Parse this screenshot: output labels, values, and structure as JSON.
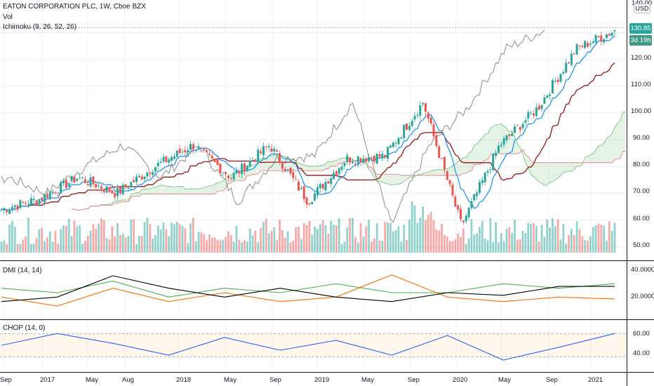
{
  "header": {
    "title": "EATON CORPORATION PLC, 1W, Cboe BZX",
    "volume_label": "Vol",
    "ichimoku_label": "Ichimoku (9, 26, 52, 26)"
  },
  "currency_badge": "USD",
  "price_tag": "130.85",
  "countdown_tag": "3d 19h",
  "price_axis": {
    "top_partial": "140.00",
    "labels": [
      "130.00",
      "120.00",
      "110.00",
      "100.00",
      "90.00",
      "80.00",
      "70.00",
      "60.00",
      "50.00"
    ]
  },
  "dmi_pane": {
    "label": "DMI (14, 14)",
    "axis_labels": [
      "40.0000",
      "20.0000"
    ]
  },
  "chop_pane": {
    "label": "CHOP (14, 0)",
    "axis_labels": [
      "60.00",
      "40.00"
    ]
  },
  "time_axis": [
    "Sep",
    "2017",
    "May",
    "Aug",
    "2018",
    "May",
    "Sep",
    "2019",
    "May",
    "Sep",
    "2020",
    "May",
    "Sep",
    "2021"
  ],
  "colors": {
    "up": "#26a69a",
    "down": "#ef5350",
    "conversion_line": "#2196f3",
    "base_line": "#991515",
    "lagging_span": "#808080",
    "dmi_plus": "#4caf50",
    "dmi_minus": "#ff6d00",
    "adx": "#000000",
    "chop": "#2962ff"
  },
  "chart_data": {
    "type": "candlestick",
    "symbol": "EATON CORPORATION PLC",
    "interval": "1W",
    "price_range": [
      45,
      140
    ],
    "last_price": 130.85,
    "price_key_points": [
      {
        "t": "2016-09",
        "close": 64
      },
      {
        "t": "2017-01",
        "close": 68
      },
      {
        "t": "2017-05",
        "close": 76
      },
      {
        "t": "2017-08",
        "close": 70
      },
      {
        "t": "2017-12",
        "close": 80
      },
      {
        "t": "2018-01",
        "close": 88
      },
      {
        "t": "2018-05",
        "close": 76
      },
      {
        "t": "2018-09",
        "close": 88
      },
      {
        "t": "2018-12",
        "close": 67
      },
      {
        "t": "2019-05",
        "close": 83
      },
      {
        "t": "2019-09",
        "close": 84
      },
      {
        "t": "2020-02",
        "close": 104
      },
      {
        "t": "2020-03",
        "close": 58
      },
      {
        "t": "2020-06",
        "close": 88
      },
      {
        "t": "2020-09",
        "close": 102
      },
      {
        "t": "2020-12",
        "close": 124
      },
      {
        "t": "2021-02",
        "close": 130.85
      }
    ],
    "dmi": {
      "range": [
        10,
        50
      ],
      "adx": [
        15,
        20,
        44,
        30,
        20,
        30,
        20,
        15,
        25,
        22,
        32,
        32
      ],
      "di_plus": [
        30,
        25,
        38,
        20,
        30,
        25,
        35,
        25,
        25,
        35,
        30,
        35
      ],
      "di_minus": [
        20,
        10,
        30,
        15,
        25,
        15,
        20,
        45,
        20,
        15,
        20,
        18
      ]
    },
    "chop": {
      "range": [
        25,
        70
      ],
      "upper_band": 61.8,
      "lower_band": 38.2,
      "values": [
        50,
        62,
        52,
        40,
        58,
        45,
        55,
        40,
        60,
        35,
        48,
        62
      ]
    }
  }
}
